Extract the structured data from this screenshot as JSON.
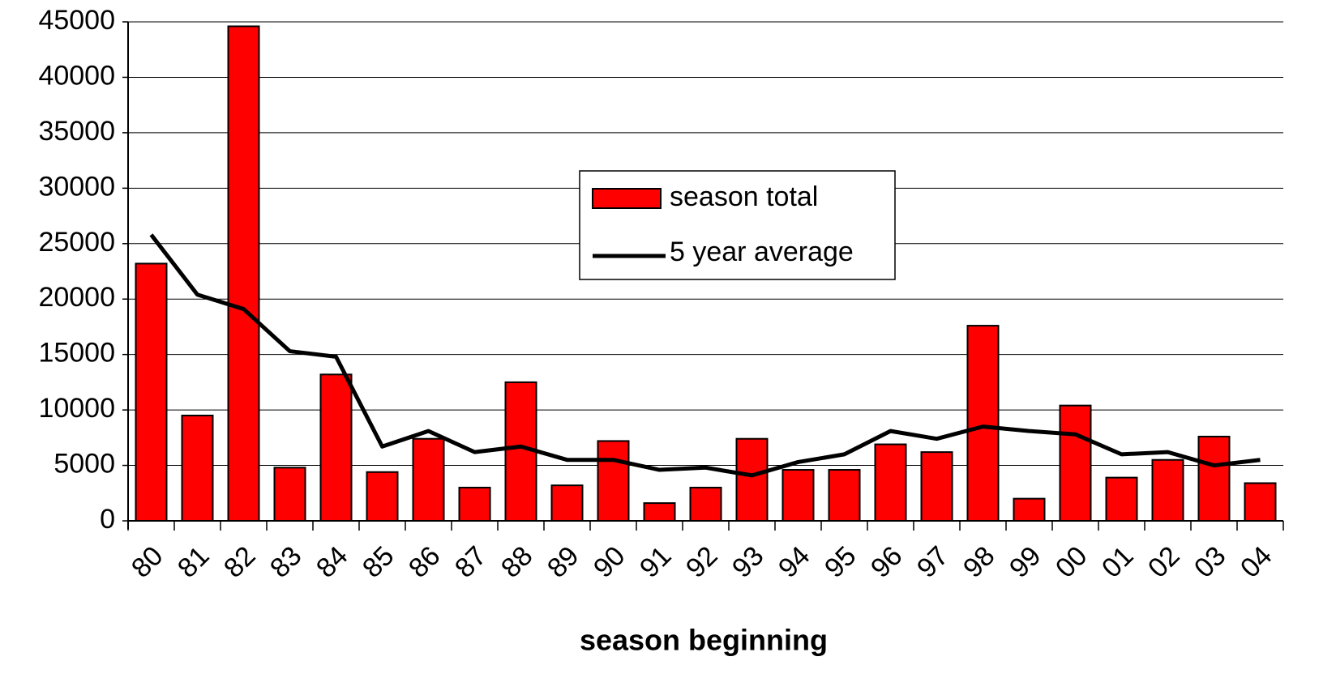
{
  "chart_data": {
    "type": "bar",
    "xlabel": "season beginning",
    "categories": [
      "80",
      "81",
      "82",
      "83",
      "84",
      "85",
      "86",
      "87",
      "88",
      "89",
      "90",
      "91",
      "92",
      "93",
      "94",
      "95",
      "96",
      "97",
      "98",
      "99",
      "00",
      "01",
      "02",
      "03",
      "04"
    ],
    "series": [
      {
        "name": "season total",
        "type": "bar",
        "color": "#ff0000",
        "values": [
          23200,
          9500,
          44600,
          4800,
          13200,
          4400,
          7400,
          3000,
          12500,
          3200,
          7200,
          1600,
          3000,
          7400,
          4600,
          4600,
          6900,
          6200,
          17600,
          2000,
          10400,
          3900,
          5500,
          7600,
          3400
        ]
      },
      {
        "name": "5 year average",
        "type": "line",
        "color": "#000000",
        "values": [
          25800,
          20400,
          19100,
          15300,
          14800,
          6700,
          8100,
          6200,
          6700,
          5500,
          5500,
          4600,
          4800,
          4100,
          5300,
          6000,
          8100,
          7400,
          8500,
          8100,
          7800,
          6000,
          6200,
          5000,
          5500
        ]
      }
    ],
    "ylim": [
      0,
      45000
    ],
    "yticks": [
      0,
      5000,
      10000,
      15000,
      20000,
      25000,
      30000,
      35000,
      40000,
      45000
    ],
    "grid": true
  }
}
